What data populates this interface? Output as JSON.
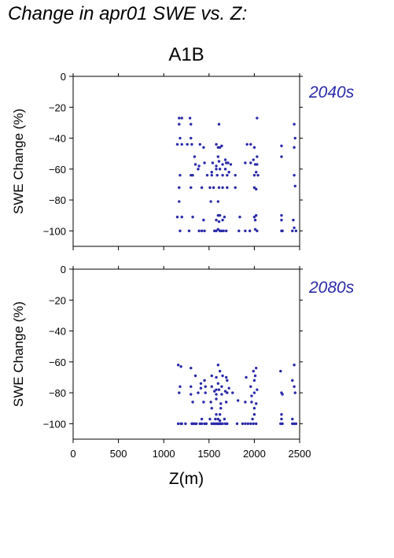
{
  "figure": {
    "title": "Change in apr01 SWE vs. Z:",
    "scenario": "A1B",
    "point_color": "#2a2aa8"
  },
  "chart_data": [
    {
      "type": "scatter",
      "period_label": "2040s",
      "ylabel": "SWE Change (%)",
      "xlabel": "",
      "xlim": [
        0,
        2500
      ],
      "ylim": [
        -110,
        0
      ],
      "xticks": [
        0,
        500,
        1000,
        1500,
        2000,
        2500
      ],
      "yticks": [
        0,
        -20,
        -40,
        -60,
        -80,
        -100
      ],
      "points": [
        [
          1170,
          -27
        ],
        [
          1200,
          -27
        ],
        [
          1290,
          -27
        ],
        [
          2030,
          -27
        ],
        [
          1170,
          -31
        ],
        [
          1300,
          -31
        ],
        [
          1610,
          -31
        ],
        [
          2440,
          -31
        ],
        [
          1150,
          -44
        ],
        [
          1200,
          -44
        ],
        [
          1260,
          -44
        ],
        [
          1310,
          -44
        ],
        [
          1400,
          -44
        ],
        [
          1440,
          -46
        ],
        [
          1580,
          -44
        ],
        [
          1600,
          -46
        ],
        [
          1620,
          -46
        ],
        [
          1640,
          -45
        ],
        [
          1920,
          -44
        ],
        [
          1960,
          -44
        ],
        [
          2000,
          -46
        ],
        [
          2300,
          -45
        ],
        [
          2440,
          -46
        ],
        [
          1180,
          -40
        ],
        [
          1300,
          -40
        ],
        [
          2450,
          -40
        ],
        [
          1340,
          -52
        ],
        [
          1600,
          -52
        ],
        [
          1680,
          -54
        ],
        [
          1990,
          -54
        ],
        [
          2030,
          -52
        ],
        [
          2300,
          -52
        ],
        [
          1350,
          -57
        ],
        [
          1390,
          -58
        ],
        [
          1450,
          -56
        ],
        [
          1540,
          -56
        ],
        [
          1580,
          -58
        ],
        [
          1610,
          -55
        ],
        [
          1650,
          -57
        ],
        [
          1690,
          -56
        ],
        [
          1710,
          -56
        ],
        [
          1740,
          -57
        ],
        [
          1900,
          -56
        ],
        [
          1960,
          -56
        ],
        [
          2010,
          -57
        ],
        [
          2030,
          -57
        ],
        [
          1380,
          -60
        ],
        [
          1530,
          -62
        ],
        [
          1580,
          -60
        ],
        [
          1620,
          -60
        ],
        [
          1680,
          -60
        ],
        [
          1720,
          -62
        ],
        [
          2020,
          -62
        ],
        [
          1180,
          -64
        ],
        [
          1300,
          -64
        ],
        [
          1320,
          -64
        ],
        [
          1480,
          -64
        ],
        [
          1530,
          -64
        ],
        [
          1590,
          -64
        ],
        [
          1650,
          -64
        ],
        [
          1700,
          -64
        ],
        [
          1790,
          -64
        ],
        [
          2000,
          -64
        ],
        [
          2040,
          -64
        ],
        [
          2440,
          -64
        ],
        [
          1170,
          -72
        ],
        [
          1300,
          -72
        ],
        [
          1420,
          -72
        ],
        [
          1510,
          -72
        ],
        [
          1550,
          -72
        ],
        [
          1610,
          -72
        ],
        [
          1650,
          -72
        ],
        [
          1700,
          -72
        ],
        [
          1790,
          -72
        ],
        [
          2000,
          -72
        ],
        [
          2020,
          -73
        ],
        [
          2450,
          -71
        ],
        [
          1170,
          -81
        ],
        [
          1520,
          -81
        ],
        [
          1600,
          -81
        ],
        [
          1150,
          -91
        ],
        [
          1200,
          -91
        ],
        [
          1320,
          -91
        ],
        [
          1600,
          -90
        ],
        [
          1620,
          -90
        ],
        [
          1670,
          -91
        ],
        [
          1840,
          -91
        ],
        [
          2000,
          -91
        ],
        [
          2020,
          -90
        ],
        [
          2300,
          -90
        ],
        [
          1440,
          -93
        ],
        [
          1580,
          -93
        ],
        [
          1610,
          -94
        ],
        [
          1650,
          -93
        ],
        [
          2010,
          -93
        ],
        [
          2300,
          -93
        ],
        [
          2430,
          -93
        ],
        [
          1180,
          -100
        ],
        [
          1280,
          -100
        ],
        [
          1390,
          -100
        ],
        [
          1420,
          -100
        ],
        [
          1450,
          -100
        ],
        [
          1560,
          -100
        ],
        [
          1580,
          -100
        ],
        [
          1600,
          -99
        ],
        [
          1620,
          -100
        ],
        [
          1640,
          -100
        ],
        [
          1660,
          -100
        ],
        [
          1690,
          -100
        ],
        [
          1830,
          -100
        ],
        [
          1900,
          -100
        ],
        [
          1950,
          -100
        ],
        [
          2010,
          -99
        ],
        [
          2030,
          -100
        ],
        [
          2300,
          -100
        ],
        [
          2310,
          -100
        ],
        [
          2420,
          -100
        ],
        [
          2440,
          -98
        ],
        [
          2460,
          -100
        ]
      ]
    },
    {
      "type": "scatter",
      "period_label": "2080s",
      "ylabel": "SWE Change (%)",
      "xlabel": "Z(m)",
      "xlim": [
        0,
        2500
      ],
      "ylim": [
        -110,
        0
      ],
      "xticks": [
        0,
        500,
        1000,
        1500,
        2000,
        2500
      ],
      "yticks": [
        0,
        -20,
        -40,
        -60,
        -80,
        -100
      ],
      "points": [
        [
          1160,
          -62
        ],
        [
          1190,
          -63
        ],
        [
          1300,
          -64
        ],
        [
          1600,
          -62
        ],
        [
          2020,
          -64
        ],
        [
          2290,
          -66
        ],
        [
          2440,
          -62
        ],
        [
          1990,
          -66
        ],
        [
          1620,
          -66
        ],
        [
          1350,
          -69
        ],
        [
          1530,
          -69
        ],
        [
          1580,
          -70
        ],
        [
          1650,
          -69
        ],
        [
          1690,
          -70
        ],
        [
          1910,
          -70
        ],
        [
          2010,
          -69
        ],
        [
          1450,
          -72
        ],
        [
          1600,
          -74
        ],
        [
          1700,
          -72
        ],
        [
          2000,
          -72
        ],
        [
          2420,
          -72
        ],
        [
          1410,
          -74
        ],
        [
          1180,
          -76
        ],
        [
          1300,
          -76
        ],
        [
          1410,
          -77
        ],
        [
          1460,
          -76
        ],
        [
          1530,
          -76
        ],
        [
          1580,
          -78
        ],
        [
          1610,
          -78
        ],
        [
          1640,
          -76
        ],
        [
          1680,
          -79
        ],
        [
          1720,
          -77
        ],
        [
          1960,
          -76
        ],
        [
          2030,
          -78
        ],
        [
          2440,
          -76
        ],
        [
          1170,
          -80
        ],
        [
          1300,
          -81
        ],
        [
          1380,
          -80
        ],
        [
          1460,
          -80
        ],
        [
          1560,
          -79
        ],
        [
          1580,
          -81
        ],
        [
          1640,
          -81
        ],
        [
          1700,
          -80
        ],
        [
          1760,
          -80
        ],
        [
          1970,
          -82
        ],
        [
          2000,
          -80
        ],
        [
          2300,
          -80
        ],
        [
          2310,
          -81
        ],
        [
          2450,
          -80
        ],
        [
          1320,
          -86
        ],
        [
          1440,
          -86
        ],
        [
          1520,
          -86
        ],
        [
          1580,
          -84
        ],
        [
          1630,
          -87
        ],
        [
          1690,
          -86
        ],
        [
          1820,
          -85
        ],
        [
          1900,
          -86
        ],
        [
          1970,
          -86
        ],
        [
          2020,
          -87
        ],
        [
          1530,
          -90
        ],
        [
          1630,
          -90
        ],
        [
          2000,
          -90
        ],
        [
          1580,
          -94
        ],
        [
          1620,
          -94
        ],
        [
          2000,
          -94
        ],
        [
          2300,
          -94
        ],
        [
          1420,
          -97
        ],
        [
          1510,
          -97
        ],
        [
          1570,
          -97
        ],
        [
          1600,
          -97
        ],
        [
          1620,
          -98
        ],
        [
          1670,
          -97
        ],
        [
          1980,
          -97
        ],
        [
          2300,
          -97
        ],
        [
          2420,
          -97
        ],
        [
          1160,
          -100
        ],
        [
          1190,
          -100
        ],
        [
          1200,
          -100
        ],
        [
          1240,
          -100
        ],
        [
          1310,
          -100
        ],
        [
          1320,
          -100
        ],
        [
          1340,
          -100
        ],
        [
          1360,
          -100
        ],
        [
          1400,
          -100
        ],
        [
          1420,
          -100
        ],
        [
          1450,
          -100
        ],
        [
          1470,
          -100
        ],
        [
          1530,
          -100
        ],
        [
          1550,
          -100
        ],
        [
          1570,
          -100
        ],
        [
          1590,
          -100
        ],
        [
          1600,
          -100
        ],
        [
          1610,
          -100
        ],
        [
          1620,
          -100
        ],
        [
          1630,
          -100
        ],
        [
          1650,
          -100
        ],
        [
          1680,
          -100
        ],
        [
          1700,
          -100
        ],
        [
          1810,
          -100
        ],
        [
          1870,
          -100
        ],
        [
          1900,
          -100
        ],
        [
          1930,
          -100
        ],
        [
          1960,
          -100
        ],
        [
          1990,
          -100
        ],
        [
          2020,
          -100
        ],
        [
          2290,
          -100
        ],
        [
          2310,
          -100
        ],
        [
          2420,
          -100
        ],
        [
          2440,
          -100
        ],
        [
          2460,
          -100
        ]
      ]
    }
  ]
}
